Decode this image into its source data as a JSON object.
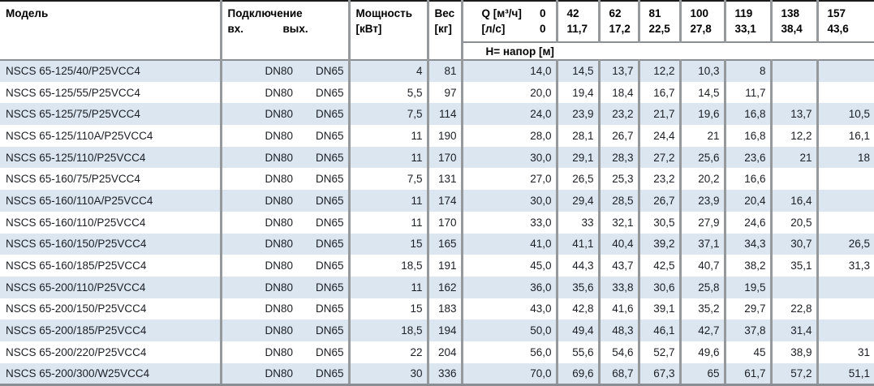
{
  "header": {
    "model": "Модель",
    "connection": "Подключение",
    "conn_in": "вх.",
    "conn_out": "вых.",
    "power_line1": "Мощность",
    "power_line2": "[кВт]",
    "weight_line1": "Вес",
    "weight_line2": "[кг]",
    "q_label_line1": "Q [м³/ч]",
    "q_value_line1": "0",
    "q_label_line2": "[л/с]",
    "q_value_line2": "0",
    "head_row_label": "H= напор [м]"
  },
  "q_columns": [
    {
      "m3h": "42",
      "ls": "11,7"
    },
    {
      "m3h": "62",
      "ls": "17,2"
    },
    {
      "m3h": "81",
      "ls": "22,5"
    },
    {
      "m3h": "100",
      "ls": "27,8"
    },
    {
      "m3h": "119",
      "ls": "33,1"
    },
    {
      "m3h": "138",
      "ls": "38,4"
    },
    {
      "m3h": "157",
      "ls": "43,6"
    }
  ],
  "rows": [
    {
      "model": "NSCS 65-125/40/P25VCC4",
      "in": "DN80",
      "out": "DN65",
      "power": "4",
      "weight": "81",
      "h": [
        "14,0",
        "14,5",
        "13,7",
        "12,2",
        "10,3",
        "8",
        "",
        ""
      ]
    },
    {
      "model": "NSCS 65-125/55/P25VCC4",
      "in": "DN80",
      "out": "DN65",
      "power": "5,5",
      "weight": "97",
      "h": [
        "20,0",
        "19,4",
        "18,4",
        "16,7",
        "14,5",
        "11,7",
        "",
        ""
      ]
    },
    {
      "model": "NSCS 65-125/75/P25VCC4",
      "in": "DN80",
      "out": "DN65",
      "power": "7,5",
      "weight": "114",
      "h": [
        "24,0",
        "23,9",
        "23,2",
        "21,7",
        "19,6",
        "16,8",
        "13,7",
        "10,5"
      ]
    },
    {
      "model": "NSCS 65-125/110A/P25VCC4",
      "in": "DN80",
      "out": "DN65",
      "power": "11",
      "weight": "190",
      "h": [
        "28,0",
        "28,1",
        "26,7",
        "24,4",
        "21",
        "16,8",
        "12,2",
        "16,1"
      ]
    },
    {
      "model": "NSCS 65-125/110/P25VCC4",
      "in": "DN80",
      "out": "DN65",
      "power": "11",
      "weight": "170",
      "h": [
        "30,0",
        "29,1",
        "28,3",
        "27,2",
        "25,6",
        "23,6",
        "21",
        "18"
      ]
    },
    {
      "model": "NSCS 65-160/75/P25VCC4",
      "in": "DN80",
      "out": "DN65",
      "power": "7,5",
      "weight": "131",
      "h": [
        "27,0",
        "26,5",
        "25,3",
        "23,2",
        "20,2",
        "16,6",
        "",
        ""
      ]
    },
    {
      "model": "NSCS 65-160/110A/P25VCC4",
      "in": "DN80",
      "out": "DN65",
      "power": "11",
      "weight": "174",
      "h": [
        "30,0",
        "29,4",
        "28,5",
        "26,7",
        "23,9",
        "20,4",
        "16,4",
        ""
      ]
    },
    {
      "model": "NSCS 65-160/110/P25VCC4",
      "in": "DN80",
      "out": "DN65",
      "power": "11",
      "weight": "170",
      "h": [
        "33,0",
        "33",
        "32,1",
        "30,5",
        "27,9",
        "24,6",
        "20,5",
        ""
      ]
    },
    {
      "model": "NSCS 65-160/150/P25VCC4",
      "in": "DN80",
      "out": "DN65",
      "power": "15",
      "weight": "165",
      "h": [
        "41,0",
        "41,1",
        "40,4",
        "39,2",
        "37,1",
        "34,3",
        "30,7",
        "26,5"
      ]
    },
    {
      "model": "NSCS 65-160/185/P25VCC4",
      "in": "DN80",
      "out": "DN65",
      "power": "18,5",
      "weight": "191",
      "h": [
        "45,0",
        "44,3",
        "43,7",
        "42,5",
        "40,7",
        "38,2",
        "35,1",
        "31,3"
      ]
    },
    {
      "model": "NSCS 65-200/110/P25VCC4",
      "in": "DN80",
      "out": "DN65",
      "power": "11",
      "weight": "162",
      "h": [
        "36,0",
        "35,6",
        "33,8",
        "30,6",
        "25,8",
        "19,5",
        "",
        ""
      ]
    },
    {
      "model": "NSCS 65-200/150/P25VCC4",
      "in": "DN80",
      "out": "DN65",
      "power": "15",
      "weight": "183",
      "h": [
        "43,0",
        "42,8",
        "41,6",
        "39,1",
        "35,2",
        "29,7",
        "22,8",
        ""
      ]
    },
    {
      "model": "NSCS 65-200/185/P25VCC4",
      "in": "DN80",
      "out": "DN65",
      "power": "18,5",
      "weight": "194",
      "h": [
        "50,0",
        "49,4",
        "48,3",
        "46,1",
        "42,7",
        "37,8",
        "31,4",
        ""
      ]
    },
    {
      "model": "NSCS 65-200/220/P25VCC4",
      "in": "DN80",
      "out": "DN65",
      "power": "22",
      "weight": "204",
      "h": [
        "56,0",
        "55,6",
        "54,6",
        "52,7",
        "49,6",
        "45",
        "38,9",
        "31"
      ]
    },
    {
      "model": "NSCS 65-200/300/W25VCC4",
      "in": "DN80",
      "out": "DN65",
      "power": "30",
      "weight": "336",
      "h": [
        "70,0",
        "69,6",
        "68,7",
        "67,3",
        "65",
        "61,7",
        "57,2",
        "51,1"
      ]
    }
  ],
  "colors": {
    "zebra_blue": "#dce6f1",
    "grid_grey": "#96999c",
    "top_border_black": "#1b1b1b",
    "text_dark": "#1b1e24"
  }
}
